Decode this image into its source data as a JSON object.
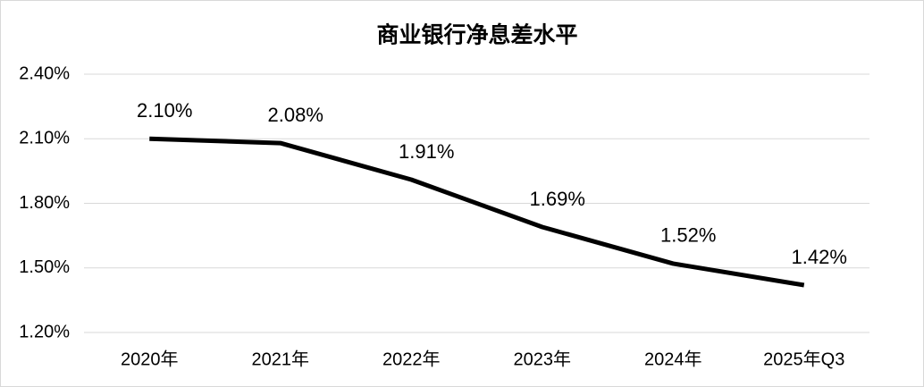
{
  "chart_data": {
    "type": "line",
    "title": "商业银行净息差水平",
    "categories": [
      "2020年",
      "2021年",
      "2022年",
      "2023年",
      "2024年",
      "2025年Q3"
    ],
    "values": [
      2.1,
      2.08,
      1.91,
      1.69,
      1.52,
      1.42
    ],
    "value_labels": [
      "2.10%",
      "2.08%",
      "1.91%",
      "1.69%",
      "1.52%",
      "1.42%"
    ],
    "color": "#000000",
    "ylim": [
      1.2,
      2.4
    ],
    "yticks": [
      {
        "value": 1.2,
        "label": "1.20%"
      },
      {
        "value": 1.5,
        "label": "1.50%"
      },
      {
        "value": 1.8,
        "label": "1.80%"
      },
      {
        "value": 2.1,
        "label": "2.10%"
      },
      {
        "value": 2.4,
        "label": "2.40%"
      }
    ],
    "grid": true
  }
}
